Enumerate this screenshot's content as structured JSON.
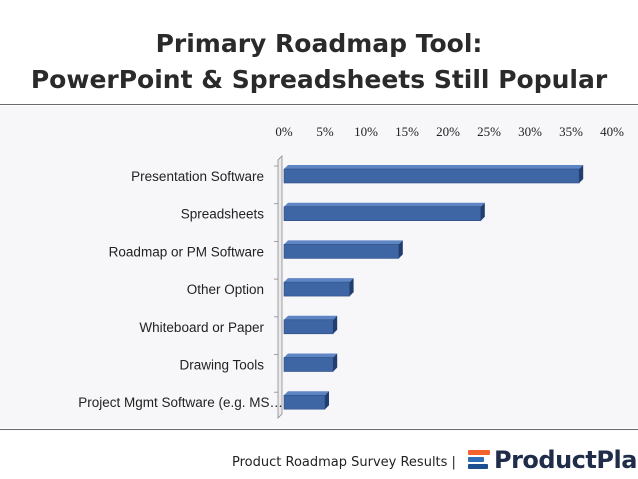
{
  "title_line1": "Primary Roadmap Tool:",
  "title_line2": "PowerPoint & Spreadsheets Still Popular",
  "footer": {
    "text": "Product Roadmap Survey Results |",
    "brand": "ProductPlan"
  },
  "colors": {
    "bar": "#3f66a4",
    "bar_dark": "#213e6f",
    "bar_light": "#5f86c4"
  },
  "chart_data": {
    "type": "bar",
    "orientation": "horizontal",
    "categories": [
      "Presentation Software",
      "Spreadsheets",
      "Roadmap or PM Software",
      "Other Option",
      "Whiteboard or Paper",
      "Drawing Tools",
      "Project Mgmt Software (e.g. MS…"
    ],
    "values": [
      36,
      24,
      14,
      8,
      6,
      6,
      5
    ],
    "xlim": [
      0,
      40
    ],
    "x_ticks": [
      "0%",
      "5%",
      "10%",
      "15%",
      "20%",
      "25%",
      "30%",
      "35%",
      "40%"
    ],
    "x_axis_position": "top",
    "grid": false,
    "style": "3d"
  }
}
